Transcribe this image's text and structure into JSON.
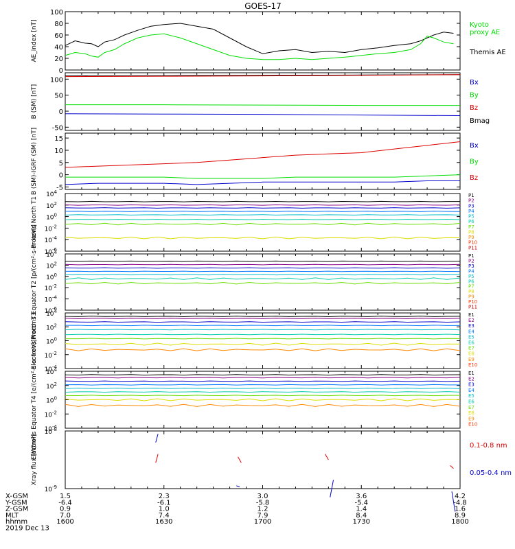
{
  "title": "GOES-17",
  "colors": {
    "black": "#000000",
    "green": "#00dd00",
    "blue": "#0000cc",
    "red": "#dd0000",
    "p": [
      "#000000",
      "#880088",
      "#0000cc",
      "#0077ff",
      "#00bbcc",
      "#00ccaa",
      "#66dd00",
      "#dddd00",
      "#ff8800",
      "#ff3300",
      "#cc0000"
    ],
    "e": [
      "#000000",
      "#880088",
      "#0000cc",
      "#0077ff",
      "#00bbcc",
      "#00ccaa",
      "#66dd00",
      "#dddd00",
      "#ff8800",
      "#ff3300",
      "#cc0000"
    ]
  },
  "ephemeris": {
    "labels": [
      "X-GSM",
      "Y-GSM",
      "Z-GSM",
      "MLT",
      "hhmm",
      "2019 Dec 13"
    ],
    "columns": [
      [
        "1.5",
        "-6.4",
        "0.9",
        "7.0",
        "1600"
      ],
      [
        "2.3",
        "-6.1",
        "1.0",
        "7.4",
        "1630"
      ],
      [
        "3.0",
        "-5.8",
        "1.2",
        "7.9",
        "1700"
      ],
      [
        "3.6",
        "-5.4",
        "1.4",
        "8.4",
        "1730"
      ],
      [
        "4.2",
        "-4.8",
        "1.6",
        "8.9",
        "1800"
      ]
    ]
  },
  "chart_data": [
    {
      "type": "line",
      "ylabel": "AE_index [nT]",
      "ylim": [
        0,
        100
      ],
      "yticks": [
        "0",
        "20",
        "40",
        "60",
        "80",
        "100"
      ],
      "legend": [
        "Kyoto proxy AE",
        "Themis AE"
      ],
      "x": [
        0,
        3,
        6,
        8,
        10,
        12,
        15,
        18,
        22,
        26,
        30,
        35,
        40,
        45,
        50,
        55,
        60,
        65,
        70,
        75,
        80,
        85,
        90,
        95,
        100,
        105,
        108,
        110,
        112,
        115,
        118
      ],
      "series": [
        {
          "name": "Themis AE",
          "color": "black",
          "values": [
            42,
            50,
            46,
            45,
            40,
            48,
            52,
            60,
            68,
            75,
            78,
            80,
            75,
            70,
            55,
            40,
            28,
            33,
            35,
            30,
            32,
            30,
            35,
            38,
            42,
            45,
            50,
            55,
            60,
            65,
            63
          ]
        },
        {
          "name": "Kyoto proxy AE",
          "color": "green",
          "values": [
            25,
            30,
            28,
            24,
            22,
            30,
            35,
            45,
            55,
            60,
            62,
            55,
            45,
            35,
            25,
            20,
            18,
            18,
            20,
            18,
            20,
            22,
            25,
            28,
            30,
            35,
            45,
            58,
            55,
            48,
            45
          ]
        }
      ]
    },
    {
      "type": "line",
      "ylabel": "B (SM) [nT]",
      "ylim": [
        -60,
        120
      ],
      "yticks": [
        "-50",
        "0",
        "50",
        "100"
      ],
      "legend": [
        "Bx",
        "By",
        "Bz",
        "Bmag"
      ],
      "x": [
        0,
        30,
        60,
        90,
        120
      ],
      "series": [
        {
          "name": "Bmag",
          "color": "black",
          "values": [
            110,
            111,
            112,
            113,
            114
          ]
        },
        {
          "name": "Bz",
          "color": "red",
          "values": [
            108,
            109,
            110,
            112,
            114
          ]
        },
        {
          "name": "By",
          "color": "green",
          "values": [
            20,
            20,
            19,
            18,
            18
          ]
        },
        {
          "name": "Bx",
          "color": "blue",
          "values": [
            -8,
            -9,
            -10,
            -12,
            -14
          ]
        }
      ]
    },
    {
      "type": "line",
      "ylabel": "B (SM)-IGRF (SM) [nT]",
      "ylim": [
        -6,
        17
      ],
      "yticks": [
        "-5",
        "0",
        "5",
        "10",
        "15"
      ],
      "legend": [
        "Bx",
        "By",
        "Bz"
      ],
      "x": [
        0,
        10,
        20,
        30,
        40,
        50,
        60,
        70,
        80,
        90,
        100,
        110,
        120
      ],
      "series": [
        {
          "name": "Bz",
          "color": "red",
          "values": [
            3,
            3.5,
            4,
            4.5,
            5,
            6,
            7,
            8,
            8.5,
            9,
            10.5,
            12,
            13.5
          ]
        },
        {
          "name": "By",
          "color": "green",
          "values": [
            -1,
            -1,
            -1,
            -1,
            -1.5,
            -1.5,
            -1.5,
            -1,
            -1,
            -1,
            -1,
            -0.5,
            0
          ]
        },
        {
          "name": "Bx",
          "color": "blue",
          "values": [
            -4,
            -3.5,
            -3.5,
            -3.5,
            -4,
            -3.5,
            -3,
            -3,
            -3,
            -3,
            -3,
            -2.5,
            -2.5
          ]
        }
      ]
    },
    {
      "type": "line",
      "ylabel": "Protons North T1",
      "log": true,
      "ylim": [
        -6,
        4
      ],
      "yticks": [
        "10-6",
        "10-4",
        "10-2",
        "100",
        "102",
        "104"
      ],
      "legend": [
        "P1",
        "P2",
        "P3",
        "P4",
        "P5",
        "P6",
        "P7",
        "P8",
        "P9",
        "P10",
        "P11"
      ],
      "series_levels": [
        2.6,
        2.0,
        1.5,
        0.9,
        0.3,
        -0.5,
        -1.3,
        -3.7
      ]
    },
    {
      "type": "line",
      "ylabel": "Protons Equator T2 [p/(cm²-s-sr-keV)]",
      "log": true,
      "ylim": [
        -6,
        4
      ],
      "yticks": [
        "10-6",
        "10-4",
        "10-2",
        "100",
        "102",
        "104"
      ],
      "legend": [
        "P1",
        "P2",
        "P3",
        "P4",
        "P5",
        "P6",
        "P7",
        "P8",
        "P9",
        "P10",
        "P11"
      ],
      "series_levels": [
        2.7,
        2.1,
        1.5,
        0.9,
        0.3,
        -0.4,
        -1.2
      ]
    },
    {
      "type": "line",
      "ylabel": "Electrons North T3",
      "log": true,
      "ylim": [
        -4,
        4
      ],
      "yticks": [
        "10-4",
        "10-2",
        "100",
        "102",
        "104"
      ],
      "legend": [
        "E1",
        "E2",
        "E3",
        "E4",
        "E5",
        "E6",
        "E7",
        "E8",
        "E9",
        "E10"
      ],
      "series_levels": [
        3.5,
        3.2,
        2.7,
        2.2,
        1.6,
        0.9,
        0.3,
        -0.5,
        -1.3
      ]
    },
    {
      "type": "line",
      "ylabel": "Electrons Equator T4 [e/(cm²-s-sr-keV)]",
      "log": true,
      "ylim": [
        -4,
        4
      ],
      "yticks": [
        "10-4",
        "10-2",
        "100",
        "102",
        "104"
      ],
      "legend": [
        "E1",
        "E2",
        "E3",
        "E4",
        "E5",
        "E6",
        "E7",
        "E8",
        "E9",
        "E10"
      ],
      "series_levels": [
        3.5,
        3.1,
        2.6,
        2.1,
        1.6,
        1.1,
        0.6,
        0.0,
        -0.8
      ]
    },
    {
      "type": "line",
      "ylabel": "Xray flux [W/m²]",
      "log": true,
      "ylim": [
        -9,
        -8
      ],
      "yticks": [
        "10-9",
        "10-8"
      ],
      "legend": [
        "0.1-0.8 nm",
        "0.05-0.4 nm"
      ]
    }
  ]
}
